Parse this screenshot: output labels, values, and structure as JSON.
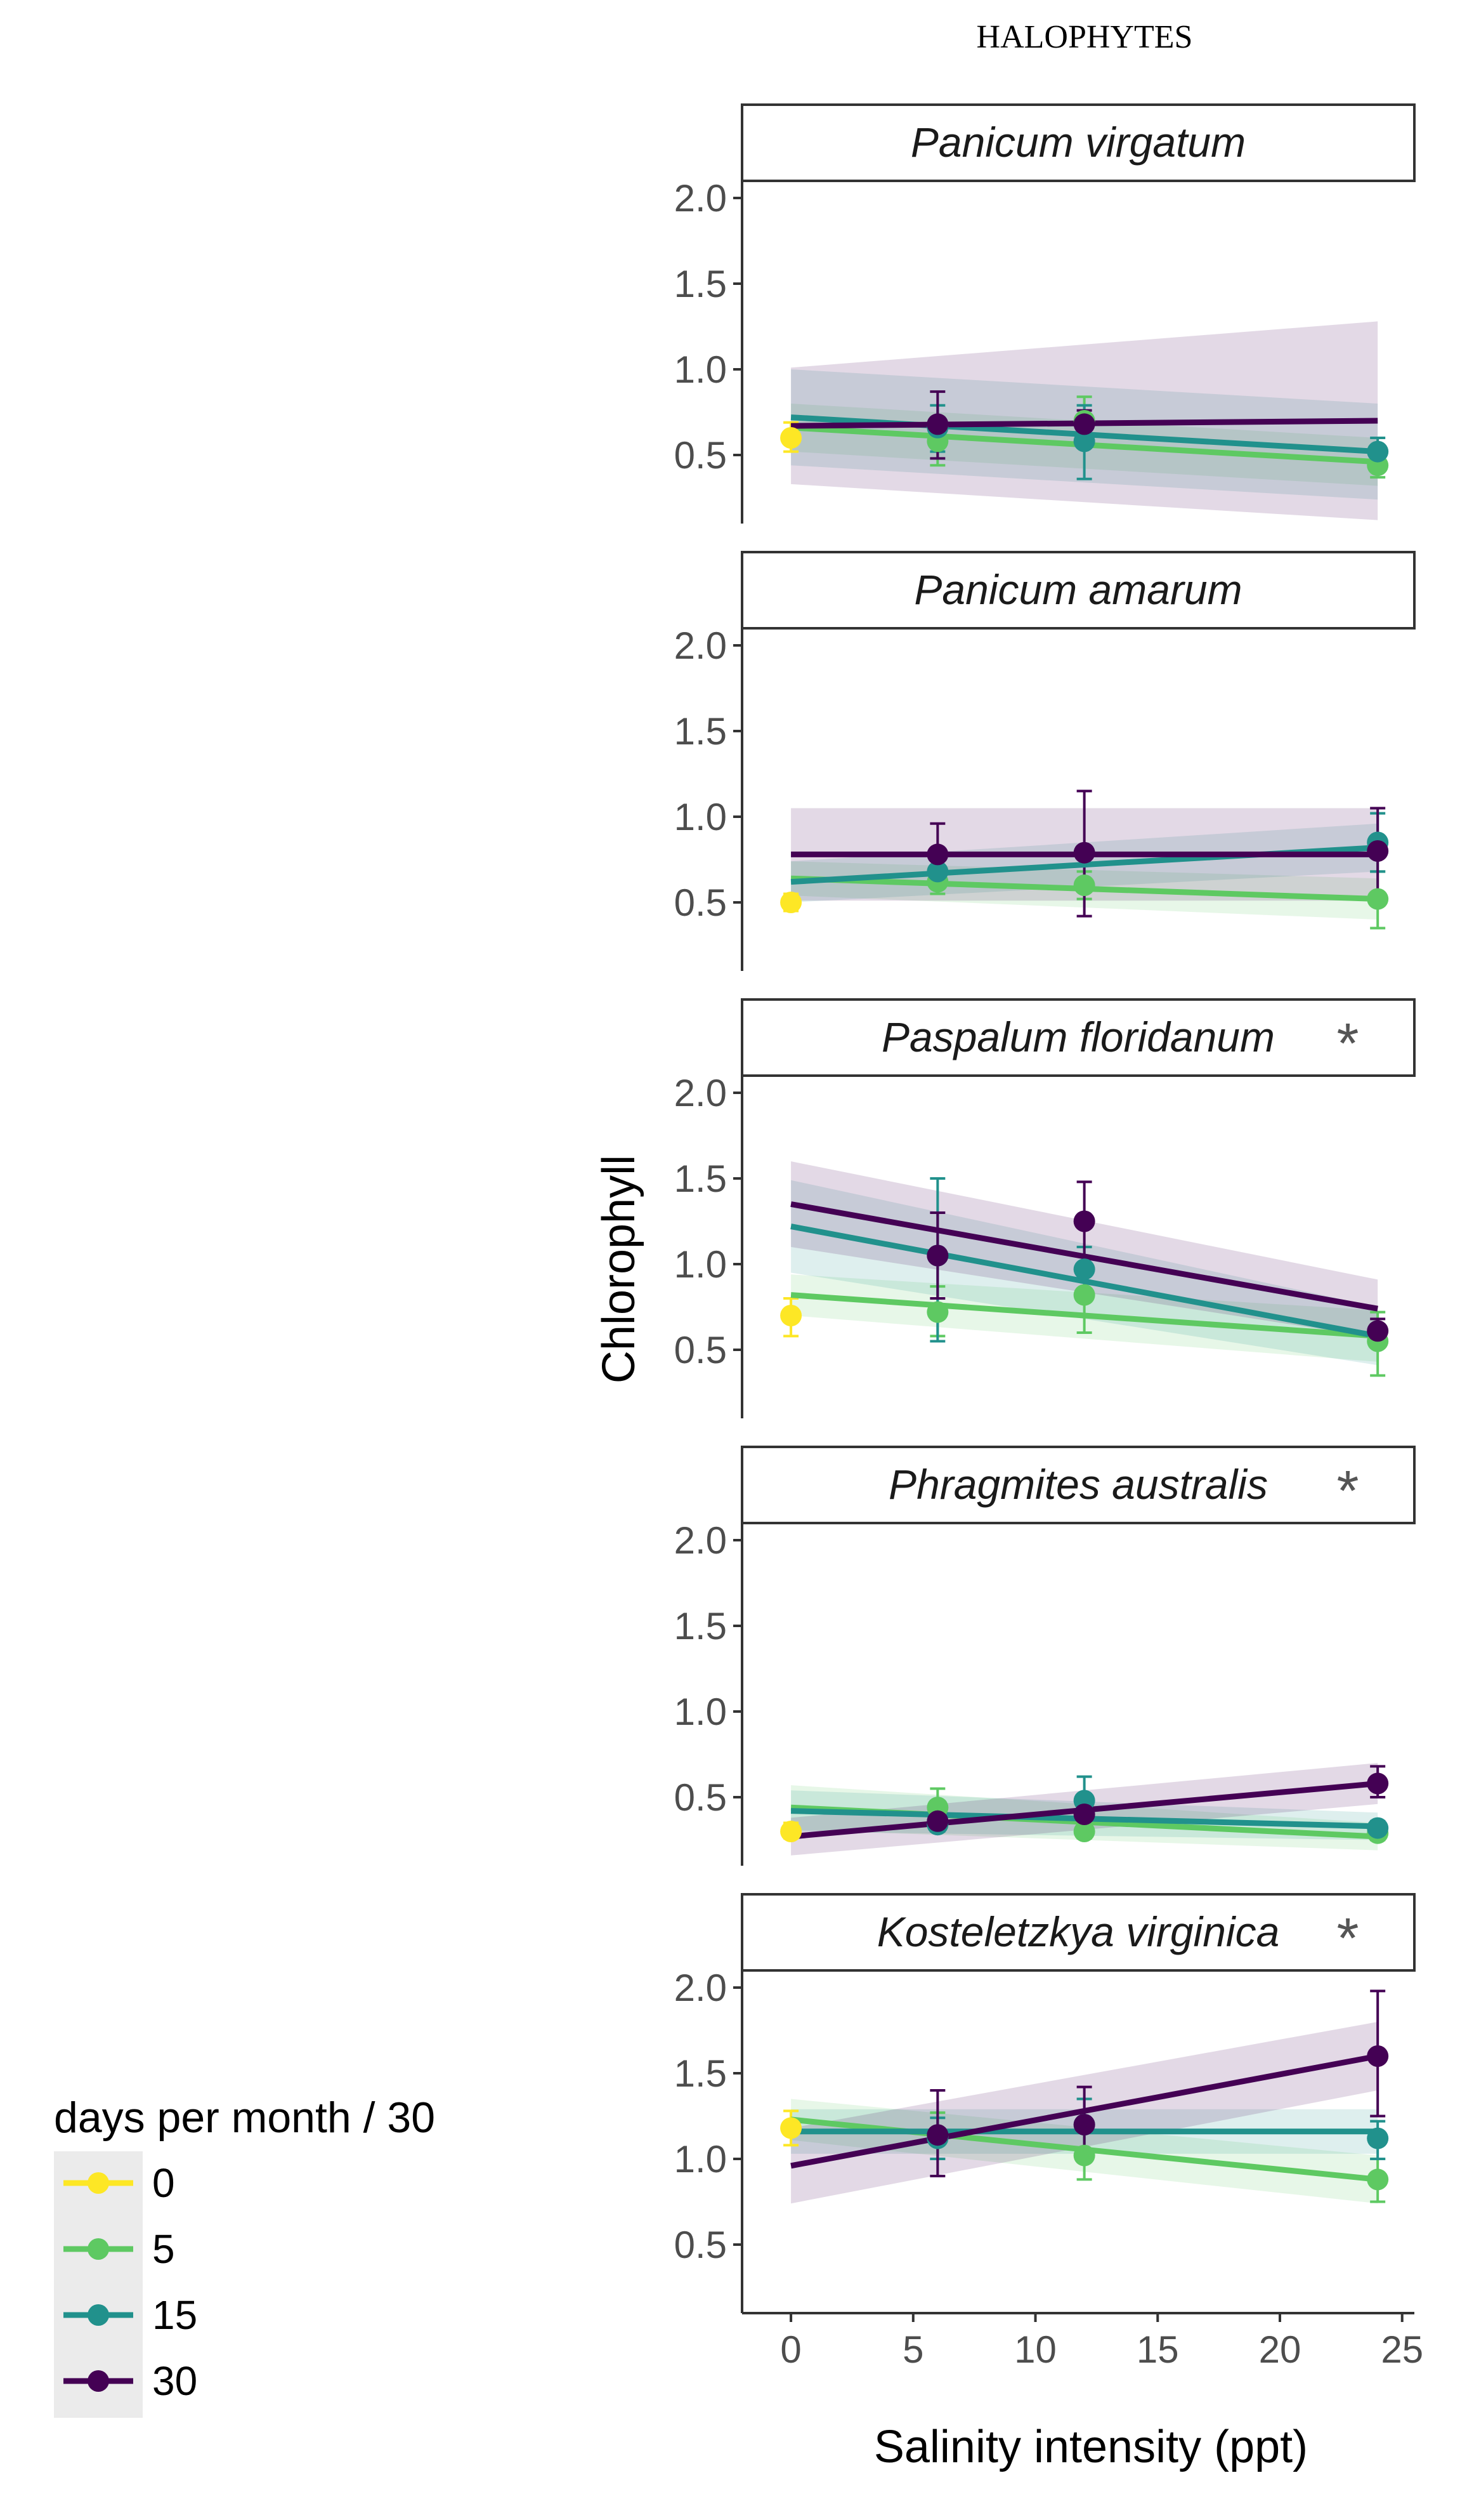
{
  "chart_data": {
    "type": "line",
    "title": "HALOPHYTES",
    "xlabel": "Salinity intensity (ppt)",
    "ylabel": "Chlorophyll",
    "xlim": [
      -2,
      25.5
    ],
    "ylim": [
      0.1,
      2.1
    ],
    "x_ticks": [
      0,
      5,
      10,
      15,
      20,
      25
    ],
    "x_tick_labels": [
      "0",
      "5",
      "10",
      "15",
      "20",
      "25"
    ],
    "y_ticks": [
      0.5,
      1.0,
      1.5,
      2.0
    ],
    "y_tick_labels": [
      "0.5",
      "1.0",
      "1.5",
      "2.0"
    ],
    "legend": {
      "title": "days per month / 30",
      "position": "bottom-left",
      "entries": [
        {
          "label": "0",
          "color": "#fde725"
        },
        {
          "label": "5",
          "color": "#5ec962"
        },
        {
          "label": "15",
          "color": "#21918c"
        },
        {
          "label": "30",
          "color": "#440154"
        }
      ]
    },
    "panels": [
      {
        "name": "Panicum virgatum",
        "marker": "",
        "points": [
          {
            "series": "0",
            "x": 0,
            "y": 0.6,
            "lo": 0.52,
            "hi": 0.69
          },
          {
            "series": "5",
            "x": 6,
            "y": 0.58,
            "lo": 0.44,
            "hi": 0.72
          },
          {
            "series": "5",
            "x": 12,
            "y": 0.7,
            "lo": 0.57,
            "hi": 0.84
          },
          {
            "series": "5",
            "x": 24,
            "y": 0.44,
            "lo": 0.37,
            "hi": 0.51
          },
          {
            "series": "15",
            "x": 6,
            "y": 0.66,
            "lo": 0.52,
            "hi": 0.79
          },
          {
            "series": "15",
            "x": 12,
            "y": 0.58,
            "lo": 0.36,
            "hi": 0.79
          },
          {
            "series": "15",
            "x": 24,
            "y": 0.52,
            "lo": 0.45,
            "hi": 0.6
          },
          {
            "series": "30",
            "x": 6,
            "y": 0.68,
            "lo": 0.48,
            "hi": 0.87
          },
          {
            "series": "30",
            "x": 12,
            "y": 0.68,
            "lo": 0.6,
            "hi": 0.76
          }
        ],
        "fits": [
          {
            "series": "5",
            "x0": 0,
            "y0": 0.66,
            "x1": 24,
            "y1": 0.46,
            "band0": 0.14,
            "band1": 0.14
          },
          {
            "series": "15",
            "x0": 0,
            "y0": 0.72,
            "x1": 24,
            "y1": 0.52,
            "band0": 0.28,
            "band1": 0.28
          },
          {
            "series": "30",
            "x0": 0,
            "y0": 0.67,
            "x1": 24,
            "y1": 0.7,
            "band0": 0.34,
            "band1": 0.58
          }
        ]
      },
      {
        "name": "Panicum amarum",
        "marker": "",
        "points": [
          {
            "series": "0",
            "x": 0,
            "y": 0.5,
            "lo": 0.45,
            "hi": 0.55
          },
          {
            "series": "5",
            "x": 6,
            "y": 0.62,
            "lo": 0.55,
            "hi": 0.7
          },
          {
            "series": "5",
            "x": 12,
            "y": 0.6,
            "lo": 0.52,
            "hi": 0.68
          },
          {
            "series": "5",
            "x": 24,
            "y": 0.52,
            "lo": 0.35,
            "hi": 0.68
          },
          {
            "series": "15",
            "x": 6,
            "y": 0.68,
            "lo": 0.6,
            "hi": 0.76
          },
          {
            "series": "15",
            "x": 24,
            "y": 0.85,
            "lo": 0.68,
            "hi": 1.02
          },
          {
            "series": "30",
            "x": 6,
            "y": 0.78,
            "lo": 0.6,
            "hi": 0.96
          },
          {
            "series": "30",
            "x": 12,
            "y": 0.79,
            "lo": 0.42,
            "hi": 1.15
          },
          {
            "series": "30",
            "x": 24,
            "y": 0.8,
            "lo": 0.55,
            "hi": 1.05
          }
        ],
        "fits": [
          {
            "series": "5",
            "x0": 0,
            "y0": 0.64,
            "x1": 24,
            "y1": 0.52,
            "band0": 0.1,
            "band1": 0.12
          },
          {
            "series": "15",
            "x0": 0,
            "y0": 0.62,
            "x1": 24,
            "y1": 0.82,
            "band0": 0.12,
            "band1": 0.14
          },
          {
            "series": "30",
            "x0": 0,
            "y0": 0.78,
            "x1": 24,
            "y1": 0.78,
            "band0": 0.27,
            "band1": 0.27
          }
        ]
      },
      {
        "name": "Paspalum floridanum",
        "marker": "*",
        "points": [
          {
            "series": "0",
            "x": 0,
            "y": 0.7,
            "lo": 0.58,
            "hi": 0.8
          },
          {
            "series": "5",
            "x": 6,
            "y": 0.72,
            "lo": 0.58,
            "hi": 0.87
          },
          {
            "series": "5",
            "x": 12,
            "y": 0.82,
            "lo": 0.6,
            "hi": 1.0
          },
          {
            "series": "5",
            "x": 24,
            "y": 0.55,
            "lo": 0.35,
            "hi": 0.72
          },
          {
            "series": "15",
            "x": 6,
            "y": 1.05,
            "lo": 0.55,
            "hi": 1.5
          },
          {
            "series": "15",
            "x": 12,
            "y": 0.97,
            "lo": 0.8,
            "hi": 1.1
          },
          {
            "series": "30",
            "x": 6,
            "y": 1.05,
            "lo": 0.8,
            "hi": 1.3
          },
          {
            "series": "30",
            "x": 12,
            "y": 1.25,
            "lo": 1.0,
            "hi": 1.48
          },
          {
            "series": "30",
            "x": 24,
            "y": 0.61,
            "lo": 0.55,
            "hi": 0.68
          }
        ],
        "fits": [
          {
            "series": "5",
            "x0": 0,
            "y0": 0.82,
            "x1": 24,
            "y1": 0.58,
            "band0": 0.12,
            "band1": 0.15
          },
          {
            "series": "15",
            "x0": 0,
            "y0": 1.22,
            "x1": 24,
            "y1": 0.58,
            "band0": 0.27,
            "band1": 0.17
          },
          {
            "series": "30",
            "x0": 0,
            "y0": 1.35,
            "x1": 24,
            "y1": 0.74,
            "band0": 0.25,
            "band1": 0.17
          }
        ]
      },
      {
        "name": "Phragmites australis",
        "marker": "*",
        "points": [
          {
            "series": "0",
            "x": 0,
            "y": 0.3,
            "lo": 0.26,
            "hi": 0.35
          },
          {
            "series": "5",
            "x": 6,
            "y": 0.44,
            "lo": 0.34,
            "hi": 0.55
          },
          {
            "series": "5",
            "x": 12,
            "y": 0.3,
            "lo": 0.26,
            "hi": 0.36
          },
          {
            "series": "5",
            "x": 24,
            "y": 0.29,
            "lo": 0.25,
            "hi": 0.33
          },
          {
            "series": "15",
            "x": 6,
            "y": 0.34,
            "lo": 0.3,
            "hi": 0.38
          },
          {
            "series": "15",
            "x": 12,
            "y": 0.48,
            "lo": 0.38,
            "hi": 0.62
          },
          {
            "series": "15",
            "x": 24,
            "y": 0.32,
            "lo": 0.28,
            "hi": 0.36
          },
          {
            "series": "30",
            "x": 6,
            "y": 0.36,
            "lo": 0.33,
            "hi": 0.4
          },
          {
            "series": "30",
            "x": 12,
            "y": 0.4,
            "lo": 0.34,
            "hi": 0.46
          },
          {
            "series": "30",
            "x": 24,
            "y": 0.58,
            "lo": 0.5,
            "hi": 0.68
          }
        ],
        "fits": [
          {
            "series": "5",
            "x0": 0,
            "y0": 0.44,
            "x1": 24,
            "y1": 0.27,
            "band0": 0.13,
            "band1": 0.08
          },
          {
            "series": "15",
            "x0": 0,
            "y0": 0.42,
            "x1": 24,
            "y1": 0.33,
            "band0": 0.12,
            "band1": 0.08
          },
          {
            "series": "30",
            "x0": 0,
            "y0": 0.27,
            "x1": 24,
            "y1": 0.58,
            "band0": 0.11,
            "band1": 0.12
          }
        ]
      },
      {
        "name": "Kosteletzkya virginica",
        "marker": "*",
        "points": [
          {
            "series": "0",
            "x": 0,
            "y": 1.18,
            "lo": 1.08,
            "hi": 1.28
          },
          {
            "series": "5",
            "x": 6,
            "y": 1.13,
            "lo": 1.0,
            "hi": 1.27
          },
          {
            "series": "5",
            "x": 12,
            "y": 1.02,
            "lo": 0.88,
            "hi": 1.16
          },
          {
            "series": "5",
            "x": 24,
            "y": 0.88,
            "lo": 0.75,
            "hi": 1.0
          },
          {
            "series": "15",
            "x": 6,
            "y": 1.12,
            "lo": 1.0,
            "hi": 1.24
          },
          {
            "series": "15",
            "x": 12,
            "y": 1.2,
            "lo": 1.05,
            "hi": 1.35
          },
          {
            "series": "15",
            "x": 24,
            "y": 1.12,
            "lo": 1.0,
            "hi": 1.22
          },
          {
            "series": "30",
            "x": 6,
            "y": 1.14,
            "lo": 0.9,
            "hi": 1.4
          },
          {
            "series": "30",
            "x": 12,
            "y": 1.2,
            "lo": 1.0,
            "hi": 1.42
          },
          {
            "series": "30",
            "x": 24,
            "y": 1.6,
            "lo": 1.25,
            "hi": 1.98
          }
        ],
        "fits": [
          {
            "series": "5",
            "x0": 0,
            "y0": 1.23,
            "x1": 24,
            "y1": 0.88,
            "band0": 0.12,
            "band1": 0.14
          },
          {
            "series": "15",
            "x0": 0,
            "y0": 1.16,
            "x1": 24,
            "y1": 1.16,
            "band0": 0.13,
            "band1": 0.13
          },
          {
            "series": "30",
            "x0": 0,
            "y0": 0.96,
            "x1": 24,
            "y1": 1.6,
            "band0": 0.22,
            "band1": 0.2
          }
        ]
      }
    ]
  }
}
